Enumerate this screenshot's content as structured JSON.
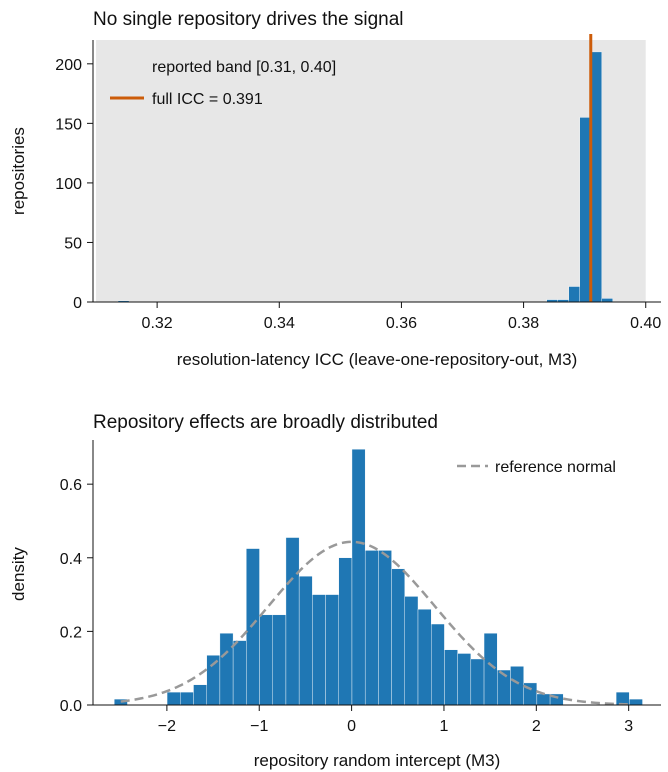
{
  "chart_data": [
    {
      "type": "bar",
      "title": "No single repository drives the signal",
      "xlabel": "resolution-latency ICC (leave-one-repository-out, M3)",
      "ylabel": "repositories",
      "xlim": [
        0.3095,
        0.4025
      ],
      "ylim": [
        0,
        220
      ],
      "xticks": [
        0.32,
        0.34,
        0.36,
        0.38,
        0.4
      ],
      "xtick_labels": [
        "0.32",
        "0.34",
        "0.36",
        "0.38",
        "0.40"
      ],
      "yticks": [
        0,
        50,
        100,
        150,
        200
      ],
      "ytick_labels": [
        "0",
        "50",
        "100",
        "150",
        "200"
      ],
      "bin_width": 0.0018,
      "bin_starts": [
        0.3136,
        0.3838,
        0.3856,
        0.3874,
        0.3892,
        0.391,
        0.3928
      ],
      "counts": [
        1,
        2,
        2,
        13,
        155,
        210,
        3
      ],
      "band": [
        0.31,
        0.4
      ],
      "vline": 0.391,
      "legend": [
        "reported band [0.31, 0.40]",
        "full ICC = 0.391"
      ],
      "legend_position": "top-left",
      "colors": {
        "bars": "#1f77b4",
        "band": "#e7e7e7",
        "vline": "#cc5c0a"
      },
      "grid": false
    },
    {
      "type": "bar",
      "title": "Repository effects are broadly distributed",
      "xlabel": "repository random intercept (M3)",
      "ylabel": "density",
      "xlim": [
        -2.8,
        3.35
      ],
      "ylim": [
        0,
        0.72
      ],
      "xticks": [
        -2,
        -1,
        0,
        1,
        2,
        3
      ],
      "xtick_labels": [
        "−2",
        "−1",
        "0",
        "1",
        "2",
        "3"
      ],
      "yticks": [
        0,
        0.2,
        0.4,
        0.6
      ],
      "ytick_labels": [
        "0.0",
        "0.2",
        "0.4",
        "0.6"
      ],
      "bin_width": 0.143,
      "bin_starts": [
        -2.57,
        -2.427,
        -2.284,
        -2.141,
        -1.998,
        -1.855,
        -1.712,
        -1.569,
        -1.426,
        -1.283,
        -1.14,
        -0.997,
        -0.854,
        -0.711,
        -0.568,
        -0.425,
        -0.282,
        -0.139,
        0.004,
        0.147,
        0.29,
        0.433,
        0.576,
        0.719,
        0.862,
        1.005,
        1.148,
        1.291,
        1.434,
        1.577,
        1.72,
        1.863,
        2.006,
        2.149,
        2.292,
        2.435,
        2.578,
        2.721,
        2.864,
        3.007
      ],
      "density": [
        0.016,
        0,
        0,
        0,
        0.035,
        0.035,
        0.055,
        0.135,
        0.195,
        0.175,
        0.425,
        0.245,
        0.245,
        0.455,
        0.35,
        0.3,
        0.3,
        0.4,
        0.695,
        0.42,
        0.42,
        0.37,
        0.295,
        0.26,
        0.22,
        0.15,
        0.14,
        0.125,
        0.195,
        0.095,
        0.105,
        0.06,
        0.03,
        0.03,
        0,
        0,
        0,
        0,
        0.035,
        0.016
      ],
      "reference_normal": {
        "mean": 0,
        "sd": 0.9
      },
      "legend": [
        "reference normal"
      ],
      "legend_position": "top-right",
      "colors": {
        "bars": "#1f77b4",
        "curve": "#999999"
      },
      "grid": false
    }
  ]
}
